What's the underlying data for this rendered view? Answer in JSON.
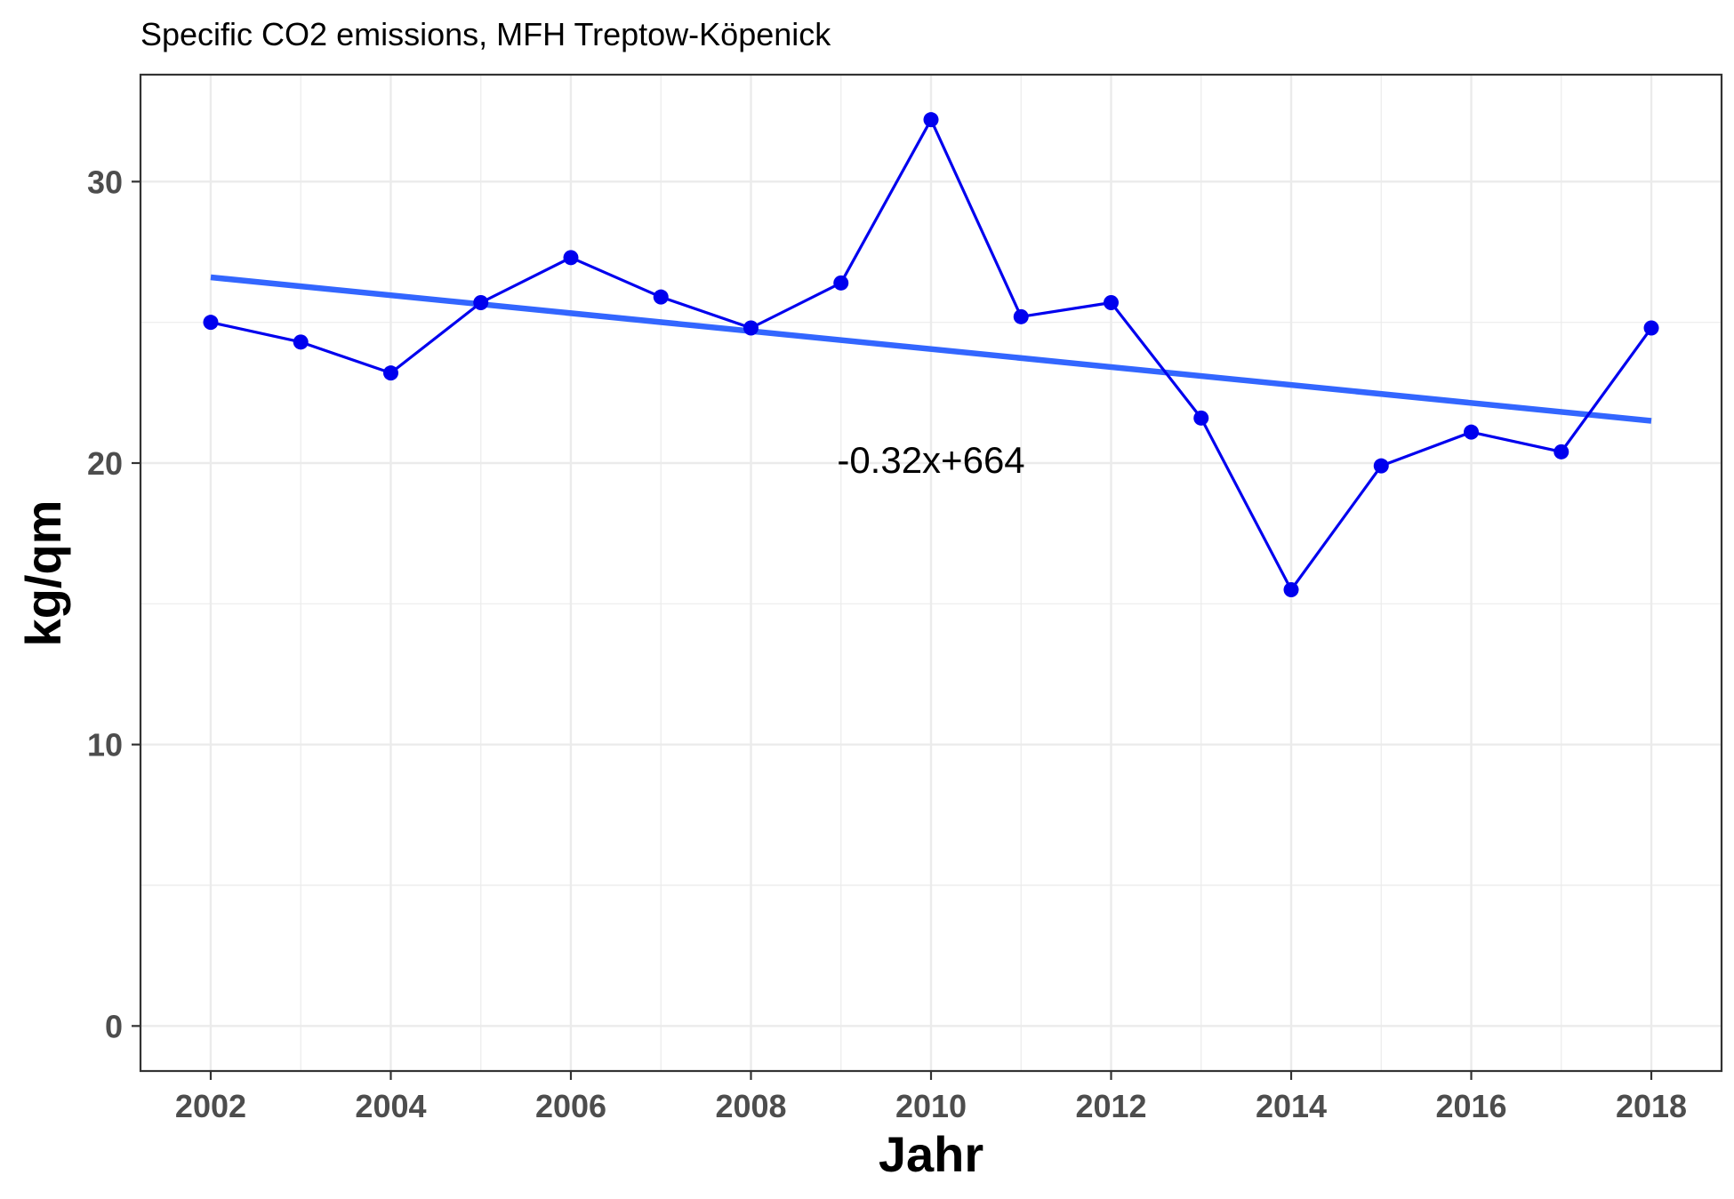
{
  "chart_data": {
    "type": "line",
    "title": "Specific CO2 emissions, MFH Treptow-Köpenick",
    "xlabel": "Jahr",
    "ylabel": "kg/qm",
    "xlim": [
      2001.22,
      2018.78
    ],
    "ylim": [
      -1.6,
      33.8
    ],
    "x_ticks": [
      2002,
      2004,
      2006,
      2008,
      2010,
      2012,
      2014,
      2016,
      2018
    ],
    "y_ticks": [
      0,
      10,
      20,
      30
    ],
    "grid": true,
    "series": [
      {
        "x": [
          2002,
          2003,
          2004,
          2005,
          2006,
          2007,
          2008,
          2009,
          2010,
          2011,
          2012,
          2013,
          2014,
          2015,
          2016,
          2017,
          2018
        ],
        "values": [
          25.0,
          24.3,
          23.2,
          25.7,
          27.3,
          25.9,
          24.8,
          26.4,
          32.2,
          25.2,
          25.7,
          21.6,
          15.5,
          19.9,
          21.1,
          20.4,
          24.8
        ],
        "color": "#0000ee"
      }
    ],
    "trendline": {
      "slope": -0.32,
      "intercept": 664,
      "x_range": [
        2002,
        2018
      ],
      "y_start": 26.6,
      "y_end": 21.5,
      "color": "#3366ff"
    },
    "annotations": [
      {
        "text": "-0.32x+664",
        "x": 2010,
        "y": 20.1
      }
    ]
  }
}
